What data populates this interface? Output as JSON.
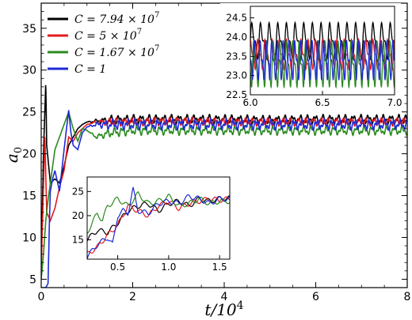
{
  "chart_data": [
    {
      "type": "line",
      "panel": "main",
      "xlabel": "t/10^4",
      "ylabel": "a_0",
      "xlim": [
        0,
        8
      ],
      "ylim": [
        4,
        38
      ],
      "xticks": [
        "0",
        "2",
        "4",
        "6",
        "8"
      ],
      "yticks": [
        "5",
        "10",
        "15",
        "20",
        "25",
        "30",
        "35"
      ],
      "legend_position": "top-left",
      "series": [
        {
          "name": "C = 7.94 × 10^7",
          "label_parts": {
            "pre": "C = 7.94 × 10",
            "exp": "7"
          },
          "color": "#000000",
          "x": [
            0.0,
            0.05,
            0.1,
            0.12,
            0.2,
            0.3,
            0.4,
            0.5,
            0.6,
            0.7,
            0.8,
            0.9,
            1.0,
            1.2,
            1.5,
            2.0,
            3.0,
            4.0,
            5.0,
            6.0,
            7.0,
            8.0
          ],
          "y": [
            7.0,
            20.0,
            28.7,
            21.0,
            16.5,
            17.0,
            16.5,
            18.5,
            21.0,
            22.0,
            23.0,
            23.5,
            23.8,
            23.9,
            24.0,
            24.1,
            24.1,
            24.1,
            24.0,
            24.1,
            24.1,
            24.1
          ],
          "oscillation_amplitude": 0.6
        },
        {
          "name": "C = 5 × 10^7",
          "label_parts": {
            "pre": "C = 5 × 10",
            "exp": "7"
          },
          "color": "#e41a1c",
          "x": [
            0.0,
            0.05,
            0.08,
            0.12,
            0.2,
            0.3,
            0.4,
            0.5,
            0.6,
            0.7,
            0.8,
            0.9,
            1.0,
            1.2,
            1.5,
            2.0,
            3.0,
            4.0,
            5.0,
            6.0,
            7.0,
            8.0
          ],
          "y": [
            6.0,
            16.0,
            22.0,
            13.0,
            12.0,
            13.5,
            16.0,
            18.0,
            22.0,
            21.5,
            22.5,
            23.0,
            23.5,
            23.8,
            23.8,
            23.8,
            23.9,
            23.8,
            23.8,
            23.8,
            23.8,
            23.8
          ],
          "oscillation_amplitude": 0.5
        },
        {
          "name": "C = 1.67 × 10^7",
          "label_parts": {
            "pre": "C = 1.67 × 10",
            "exp": "7"
          },
          "color": "#2a8a1e",
          "x": [
            0.0,
            0.05,
            0.1,
            0.15,
            0.2,
            0.3,
            0.4,
            0.5,
            0.6,
            0.7,
            0.8,
            0.9,
            1.0,
            1.2,
            1.5,
            2.0,
            3.0,
            4.0,
            5.0,
            6.0,
            7.0,
            8.0
          ],
          "y": [
            5.0,
            8.0,
            12.0,
            14.5,
            16.5,
            20.5,
            22.0,
            23.5,
            25.0,
            23.0,
            21.5,
            23.0,
            22.8,
            22.0,
            22.5,
            22.8,
            22.8,
            22.8,
            22.8,
            22.8,
            22.8,
            22.8
          ],
          "oscillation_amplitude": 0.6
        },
        {
          "name": "C = 1",
          "label_parts": {
            "pre": "C = 1",
            "exp": ""
          },
          "color": "#1f2bd6",
          "x": [
            0.0,
            0.1,
            0.15,
            0.18,
            0.2,
            0.25,
            0.3,
            0.4,
            0.5,
            0.6,
            0.65,
            0.7,
            0.8,
            0.9,
            1.0,
            1.2,
            1.5,
            2.0,
            3.0,
            4.0,
            5.0,
            6.0,
            7.0,
            8.0
          ],
          "y": [
            4.0,
            4.0,
            4.5,
            12.0,
            15.5,
            17.0,
            18.0,
            15.5,
            20.5,
            25.2,
            22.5,
            21.0,
            20.5,
            22.5,
            23.2,
            23.5,
            23.5,
            23.5,
            23.5,
            23.5,
            23.5,
            23.5,
            23.5,
            23.5
          ],
          "oscillation_amplitude": 0.7
        }
      ]
    },
    {
      "type": "line",
      "panel": "inset-top-right",
      "xlim": [
        6.0,
        7.0
      ],
      "ylim": [
        22.5,
        24.8
      ],
      "xticks": [
        "6.0",
        "6.5",
        "7.0"
      ],
      "yticks": [
        "22.5",
        "23.0",
        "23.5",
        "24.0",
        "24.5"
      ],
      "series": [
        {
          "name": "C = 7.94 × 10^7",
          "color": "#000000",
          "mean": 23.9,
          "amplitude": 0.55,
          "period": 0.06
        },
        {
          "name": "C = 5 × 10^7",
          "color": "#e41a1c",
          "mean": 23.55,
          "amplitude": 0.45,
          "period": 0.05
        },
        {
          "name": "C = 1.67 × 10^7",
          "color": "#2a8a1e",
          "mean": 23.3,
          "amplitude": 0.7,
          "period": 0.045
        },
        {
          "name": "C = 1",
          "color": "#1f2bd6",
          "mean": 23.4,
          "amplitude": 0.6,
          "period": 0.04
        }
      ]
    },
    {
      "type": "line",
      "panel": "inset-bottom-left",
      "xlim": [
        0.2,
        1.6
      ],
      "ylim": [
        11,
        28
      ],
      "xticks": [
        "0.5",
        "1.0",
        "1.5"
      ],
      "yticks": [
        "15",
        "20",
        "25"
      ],
      "series": [
        {
          "name": "C = 7.94 × 10^7",
          "color": "#000000",
          "x": [
            0.2,
            0.3,
            0.4,
            0.5,
            0.6,
            0.7,
            0.8,
            0.9,
            1.0,
            1.1,
            1.2,
            1.3,
            1.4,
            1.5,
            1.6
          ],
          "y": [
            15.0,
            17.0,
            16.5,
            18.5,
            21.0,
            22.0,
            22.5,
            21.0,
            22.5,
            23.0,
            22.0,
            23.5,
            23.0,
            23.5,
            23.6
          ]
        },
        {
          "name": "C = 5 × 10^7",
          "color": "#e41a1c",
          "x": [
            0.2,
            0.3,
            0.4,
            0.5,
            0.6,
            0.7,
            0.8,
            0.9,
            1.0,
            1.1,
            1.2,
            1.3,
            1.4,
            1.5,
            1.6
          ],
          "y": [
            12.0,
            13.5,
            16.0,
            18.0,
            22.0,
            21.0,
            20.0,
            22.0,
            23.0,
            21.5,
            22.5,
            23.0,
            23.5,
            23.2,
            23.5
          ]
        },
        {
          "name": "C = 1.67 × 10^7",
          "color": "#2a8a1e",
          "x": [
            0.2,
            0.3,
            0.35,
            0.4,
            0.5,
            0.6,
            0.7,
            0.8,
            0.9,
            1.0,
            1.1,
            1.2,
            1.3,
            1.4,
            1.5,
            1.6
          ],
          "y": [
            16.5,
            20.5,
            19.0,
            22.0,
            23.5,
            22.0,
            24.5,
            22.5,
            23.0,
            24.0,
            22.0,
            22.5,
            23.5,
            22.5,
            23.0,
            23.0
          ]
        },
        {
          "name": "C = 1",
          "color": "#1f2bd6",
          "x": [
            0.2,
            0.3,
            0.4,
            0.45,
            0.5,
            0.55,
            0.6,
            0.65,
            0.7,
            0.8,
            0.9,
            1.0,
            1.1,
            1.2,
            1.3,
            1.4,
            1.5,
            1.6
          ],
          "y": [
            11.5,
            14.0,
            15.5,
            14.0,
            20.0,
            21.0,
            20.5,
            25.5,
            21.0,
            20.5,
            22.5,
            23.0,
            22.5,
            24.0,
            23.5,
            22.5,
            23.5,
            23.4
          ]
        }
      ]
    }
  ]
}
